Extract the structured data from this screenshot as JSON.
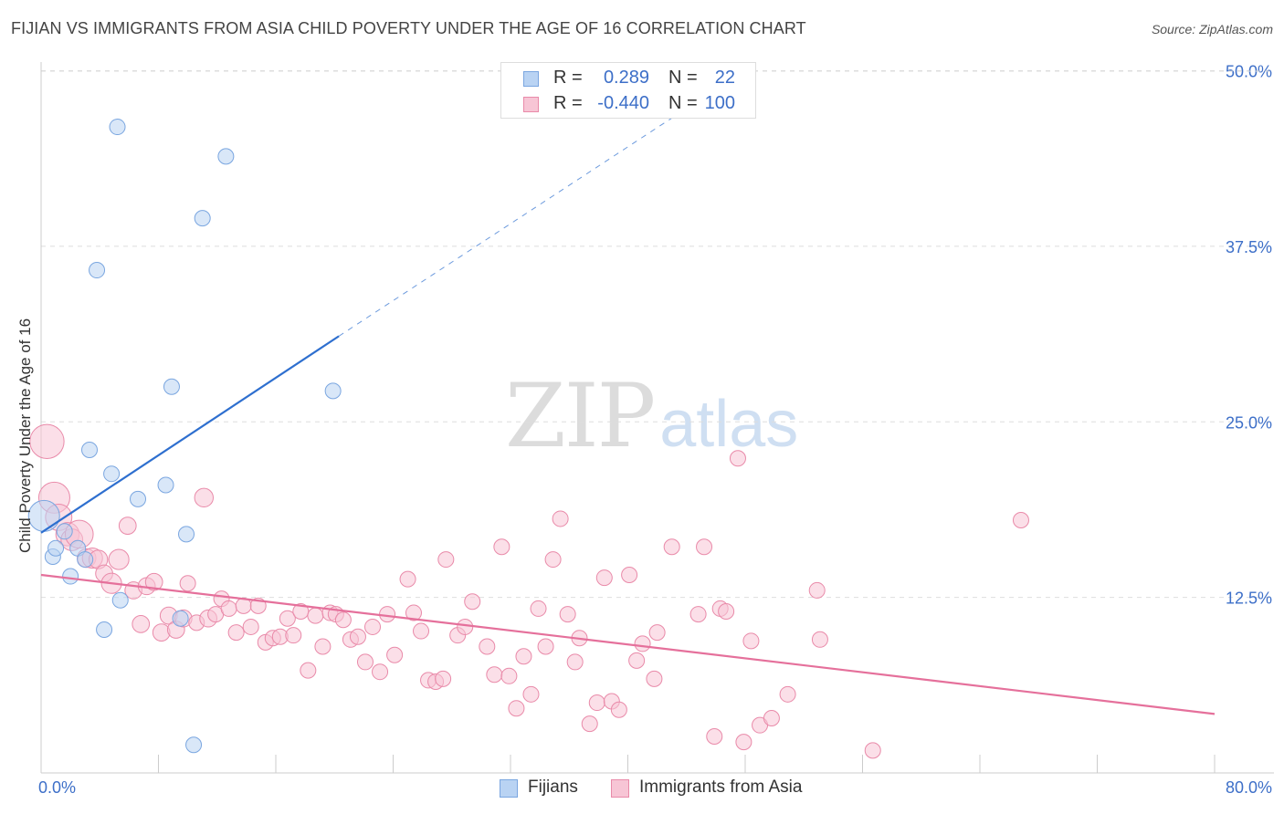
{
  "title": "FIJIAN VS IMMIGRANTS FROM ASIA CHILD POVERTY UNDER THE AGE OF 16 CORRELATION CHART",
  "source": "Source: ZipAtlas.com",
  "watermark": {
    "zip": "ZIP",
    "atlas": "atlas"
  },
  "colors": {
    "fijians_fill": "#b9d3f3",
    "fijians_stroke": "#7aa6e0",
    "fijians_line": "#2e6fcf",
    "asia_fill": "#f7c5d5",
    "asia_stroke": "#e98aa9",
    "asia_line": "#e5709b",
    "tick_label": "#3d6fc8",
    "grid": "#dddddd"
  },
  "legend_top": {
    "rows": [
      {
        "series": "fijians",
        "r_label": "R =",
        "r_value": "0.289",
        "n_label": "N =",
        "n_value": "22"
      },
      {
        "series": "asia",
        "r_label": "R =",
        "r_value": "-0.440",
        "n_label": "N =",
        "n_value": "100"
      }
    ]
  },
  "legend_bottom": {
    "items": [
      {
        "series": "fijians",
        "label": "Fijians"
      },
      {
        "series": "asia",
        "label": "Immigrants from Asia"
      }
    ]
  },
  "chart_data": {
    "type": "scatter",
    "title": "FIJIAN VS IMMIGRANTS FROM ASIA CHILD POVERTY UNDER THE AGE OF 16 CORRELATION CHART",
    "xlabel": "",
    "ylabel": "Child Poverty Under the Age of 16",
    "xlim": [
      0,
      80
    ],
    "ylim": [
      0,
      50
    ],
    "x_tick_labels": [
      "0.0%",
      "80.0%"
    ],
    "y_ticks": [
      12.5,
      25.0,
      37.5,
      50.0
    ],
    "y_tick_labels": [
      "12.5%",
      "25.0%",
      "37.5%",
      "50.0%"
    ],
    "grid": "horizontal dashed",
    "legend_position": "top-center",
    "series": [
      {
        "name": "Fijians",
        "r": 0.289,
        "n": 22,
        "trend": {
          "x0": 0,
          "y0": 17.1,
          "x1": 20.3,
          "y1": 31.1,
          "dashed_to_x": 45,
          "dashed_to_y": 48.0
        },
        "points": [
          {
            "x": 0.2,
            "y": 18.3,
            "s": 2.0
          },
          {
            "x": 0.8,
            "y": 15.4,
            "s": 1.0
          },
          {
            "x": 1.0,
            "y": 16.0,
            "s": 1.0
          },
          {
            "x": 1.6,
            "y": 17.2,
            "s": 1.0
          },
          {
            "x": 2.0,
            "y": 14.0,
            "s": 1.0
          },
          {
            "x": 2.5,
            "y": 16.0,
            "s": 1.0
          },
          {
            "x": 3.0,
            "y": 15.2,
            "s": 1.0
          },
          {
            "x": 3.3,
            "y": 23.0,
            "s": 1.0
          },
          {
            "x": 3.8,
            "y": 35.8,
            "s": 1.0
          },
          {
            "x": 4.3,
            "y": 10.2,
            "s": 1.0
          },
          {
            "x": 4.8,
            "y": 21.3,
            "s": 1.0
          },
          {
            "x": 5.2,
            "y": 46.0,
            "s": 1.0
          },
          {
            "x": 5.4,
            "y": 12.3,
            "s": 1.0
          },
          {
            "x": 6.6,
            "y": 19.5,
            "s": 1.0
          },
          {
            "x": 8.5,
            "y": 20.5,
            "s": 1.0
          },
          {
            "x": 8.9,
            "y": 27.5,
            "s": 1.0
          },
          {
            "x": 9.5,
            "y": 11.0,
            "s": 1.0
          },
          {
            "x": 9.9,
            "y": 17.0,
            "s": 1.0
          },
          {
            "x": 10.4,
            "y": 2.0,
            "s": 1.0
          },
          {
            "x": 11.0,
            "y": 39.5,
            "s": 1.0
          },
          {
            "x": 12.6,
            "y": 43.9,
            "s": 1.0
          },
          {
            "x": 19.9,
            "y": 27.2,
            "s": 1.0
          }
        ]
      },
      {
        "name": "Immigrants from Asia",
        "r": -0.44,
        "n": 100,
        "trend": {
          "x0": 0,
          "y0": 14.1,
          "x1": 80,
          "y1": 4.2
        },
        "points": [
          {
            "x": 0.4,
            "y": 23.6,
            "s": 2.2
          },
          {
            "x": 0.9,
            "y": 19.6,
            "s": 2.0
          },
          {
            "x": 1.2,
            "y": 18.2,
            "s": 1.7
          },
          {
            "x": 1.8,
            "y": 17.0,
            "s": 1.5
          },
          {
            "x": 2.1,
            "y": 16.6,
            "s": 1.4
          },
          {
            "x": 2.6,
            "y": 17.0,
            "s": 1.8
          },
          {
            "x": 3.1,
            "y": 15.3,
            "s": 1.2
          },
          {
            "x": 3.5,
            "y": 15.3,
            "s": 1.3
          },
          {
            "x": 3.9,
            "y": 15.2,
            "s": 1.2
          },
          {
            "x": 4.3,
            "y": 14.2,
            "s": 1.1
          },
          {
            "x": 4.8,
            "y": 13.5,
            "s": 1.3
          },
          {
            "x": 5.3,
            "y": 15.2,
            "s": 1.3
          },
          {
            "x": 5.9,
            "y": 17.6,
            "s": 1.1
          },
          {
            "x": 6.3,
            "y": 13.0,
            "s": 1.1
          },
          {
            "x": 6.8,
            "y": 10.6,
            "s": 1.1
          },
          {
            "x": 7.2,
            "y": 13.3,
            "s": 1.1
          },
          {
            "x": 7.7,
            "y": 13.6,
            "s": 1.1
          },
          {
            "x": 8.2,
            "y": 10.0,
            "s": 1.1
          },
          {
            "x": 8.7,
            "y": 11.2,
            "s": 1.1
          },
          {
            "x": 9.2,
            "y": 10.2,
            "s": 1.1
          },
          {
            "x": 9.7,
            "y": 11.0,
            "s": 1.1
          },
          {
            "x": 10.0,
            "y": 13.5,
            "s": 1.0
          },
          {
            "x": 10.6,
            "y": 10.7,
            "s": 1.0
          },
          {
            "x": 11.1,
            "y": 19.6,
            "s": 1.2
          },
          {
            "x": 11.4,
            "y": 11.0,
            "s": 1.1
          },
          {
            "x": 11.9,
            "y": 11.3,
            "s": 1.0
          },
          {
            "x": 12.3,
            "y": 12.4,
            "s": 1.0
          },
          {
            "x": 12.8,
            "y": 11.7,
            "s": 1.0
          },
          {
            "x": 13.3,
            "y": 10.0,
            "s": 1.0
          },
          {
            "x": 13.8,
            "y": 11.9,
            "s": 1.0
          },
          {
            "x": 14.3,
            "y": 10.4,
            "s": 1.0
          },
          {
            "x": 14.8,
            "y": 11.9,
            "s": 1.0
          },
          {
            "x": 15.3,
            "y": 9.3,
            "s": 1.0
          },
          {
            "x": 15.8,
            "y": 9.6,
            "s": 1.0
          },
          {
            "x": 16.3,
            "y": 9.7,
            "s": 1.0
          },
          {
            "x": 16.8,
            "y": 11.0,
            "s": 1.0
          },
          {
            "x": 17.2,
            "y": 9.8,
            "s": 1.0
          },
          {
            "x": 17.7,
            "y": 11.5,
            "s": 1.0
          },
          {
            "x": 18.2,
            "y": 7.3,
            "s": 1.0
          },
          {
            "x": 18.7,
            "y": 11.2,
            "s": 1.0
          },
          {
            "x": 19.2,
            "y": 9.0,
            "s": 1.0
          },
          {
            "x": 19.7,
            "y": 11.4,
            "s": 1.0
          },
          {
            "x": 20.1,
            "y": 11.3,
            "s": 1.0
          },
          {
            "x": 20.6,
            "y": 10.9,
            "s": 1.0
          },
          {
            "x": 21.1,
            "y": 9.5,
            "s": 1.0
          },
          {
            "x": 21.6,
            "y": 9.7,
            "s": 1.0
          },
          {
            "x": 22.1,
            "y": 7.9,
            "s": 1.0
          },
          {
            "x": 22.6,
            "y": 10.4,
            "s": 1.0
          },
          {
            "x": 23.1,
            "y": 7.2,
            "s": 1.0
          },
          {
            "x": 23.6,
            "y": 11.3,
            "s": 1.0
          },
          {
            "x": 24.1,
            "y": 8.4,
            "s": 1.0
          },
          {
            "x": 25.0,
            "y": 13.8,
            "s": 1.0
          },
          {
            "x": 25.4,
            "y": 11.4,
            "s": 1.0
          },
          {
            "x": 25.9,
            "y": 10.1,
            "s": 1.0
          },
          {
            "x": 26.4,
            "y": 6.6,
            "s": 1.0
          },
          {
            "x": 26.9,
            "y": 6.5,
            "s": 1.0
          },
          {
            "x": 27.4,
            "y": 6.7,
            "s": 1.0
          },
          {
            "x": 27.6,
            "y": 15.2,
            "s": 1.0
          },
          {
            "x": 28.4,
            "y": 9.8,
            "s": 1.0
          },
          {
            "x": 28.9,
            "y": 10.4,
            "s": 1.0
          },
          {
            "x": 29.4,
            "y": 12.2,
            "s": 1.0
          },
          {
            "x": 30.4,
            "y": 9.0,
            "s": 1.0
          },
          {
            "x": 30.9,
            "y": 7.0,
            "s": 1.0
          },
          {
            "x": 31.4,
            "y": 16.1,
            "s": 1.0
          },
          {
            "x": 31.9,
            "y": 6.9,
            "s": 1.0
          },
          {
            "x": 32.4,
            "y": 4.6,
            "s": 1.0
          },
          {
            "x": 32.9,
            "y": 8.3,
            "s": 1.0
          },
          {
            "x": 33.4,
            "y": 5.6,
            "s": 1.0
          },
          {
            "x": 33.9,
            "y": 11.7,
            "s": 1.0
          },
          {
            "x": 34.4,
            "y": 9.0,
            "s": 1.0
          },
          {
            "x": 34.9,
            "y": 15.2,
            "s": 1.0
          },
          {
            "x": 35.4,
            "y": 18.1,
            "s": 1.0
          },
          {
            "x": 35.9,
            "y": 11.3,
            "s": 1.0
          },
          {
            "x": 36.4,
            "y": 7.9,
            "s": 1.0
          },
          {
            "x": 36.7,
            "y": 9.6,
            "s": 1.0
          },
          {
            "x": 37.4,
            "y": 3.5,
            "s": 1.0
          },
          {
            "x": 37.9,
            "y": 5.0,
            "s": 1.0
          },
          {
            "x": 38.4,
            "y": 13.9,
            "s": 1.0
          },
          {
            "x": 38.9,
            "y": 5.1,
            "s": 1.0
          },
          {
            "x": 39.4,
            "y": 4.5,
            "s": 1.0
          },
          {
            "x": 40.1,
            "y": 14.1,
            "s": 1.0
          },
          {
            "x": 40.6,
            "y": 8.0,
            "s": 1.0
          },
          {
            "x": 41.0,
            "y": 9.2,
            "s": 1.0
          },
          {
            "x": 41.8,
            "y": 6.7,
            "s": 1.0
          },
          {
            "x": 42.0,
            "y": 10.0,
            "s": 1.0
          },
          {
            "x": 43.0,
            "y": 16.1,
            "s": 1.0
          },
          {
            "x": 44.8,
            "y": 11.3,
            "s": 1.0
          },
          {
            "x": 45.2,
            "y": 16.1,
            "s": 1.0
          },
          {
            "x": 45.9,
            "y": 2.6,
            "s": 1.0
          },
          {
            "x": 46.3,
            "y": 11.7,
            "s": 1.0
          },
          {
            "x": 46.7,
            "y": 11.5,
            "s": 1.0
          },
          {
            "x": 47.5,
            "y": 22.4,
            "s": 1.0
          },
          {
            "x": 47.9,
            "y": 2.2,
            "s": 1.0
          },
          {
            "x": 48.4,
            "y": 9.4,
            "s": 1.0
          },
          {
            "x": 49.0,
            "y": 3.4,
            "s": 1.0
          },
          {
            "x": 49.8,
            "y": 3.9,
            "s": 1.0
          },
          {
            "x": 50.9,
            "y": 5.6,
            "s": 1.0
          },
          {
            "x": 52.9,
            "y": 13.0,
            "s": 1.0
          },
          {
            "x": 53.1,
            "y": 9.5,
            "s": 1.0
          },
          {
            "x": 56.7,
            "y": 1.6,
            "s": 1.0
          },
          {
            "x": 66.8,
            "y": 18.0,
            "s": 1.0
          }
        ]
      }
    ]
  }
}
